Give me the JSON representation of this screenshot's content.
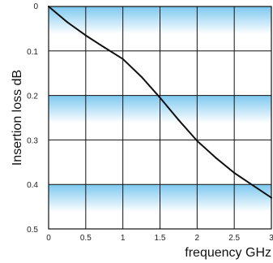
{
  "chart_data": {
    "type": "line",
    "title": "",
    "xlabel": "frequency GHz",
    "ylabel": "Insertion loss dB",
    "xlim": [
      0,
      3
    ],
    "ylim": [
      0,
      0.5
    ],
    "y_inverted": true,
    "grid": true,
    "x_ticks": [
      "0",
      "0.5",
      "1",
      "1.5",
      "2",
      "2.5",
      "3"
    ],
    "y_ticks": [
      "0",
      "0.1",
      "0.2",
      "0.3",
      "0.4",
      "0.5"
    ],
    "band_color": "#7cc8ef",
    "line_color": "#111111",
    "grid_color": "#111111",
    "series": [
      {
        "x": [
          0,
          0.25,
          0.5,
          0.75,
          1.0,
          1.25,
          1.5,
          1.75,
          2.0,
          2.25,
          2.5,
          2.75,
          3.0
        ],
        "values": [
          0,
          0.035,
          0.065,
          0.092,
          0.118,
          0.158,
          0.205,
          0.255,
          0.302,
          0.34,
          0.374,
          0.402,
          0.43
        ]
      }
    ]
  }
}
